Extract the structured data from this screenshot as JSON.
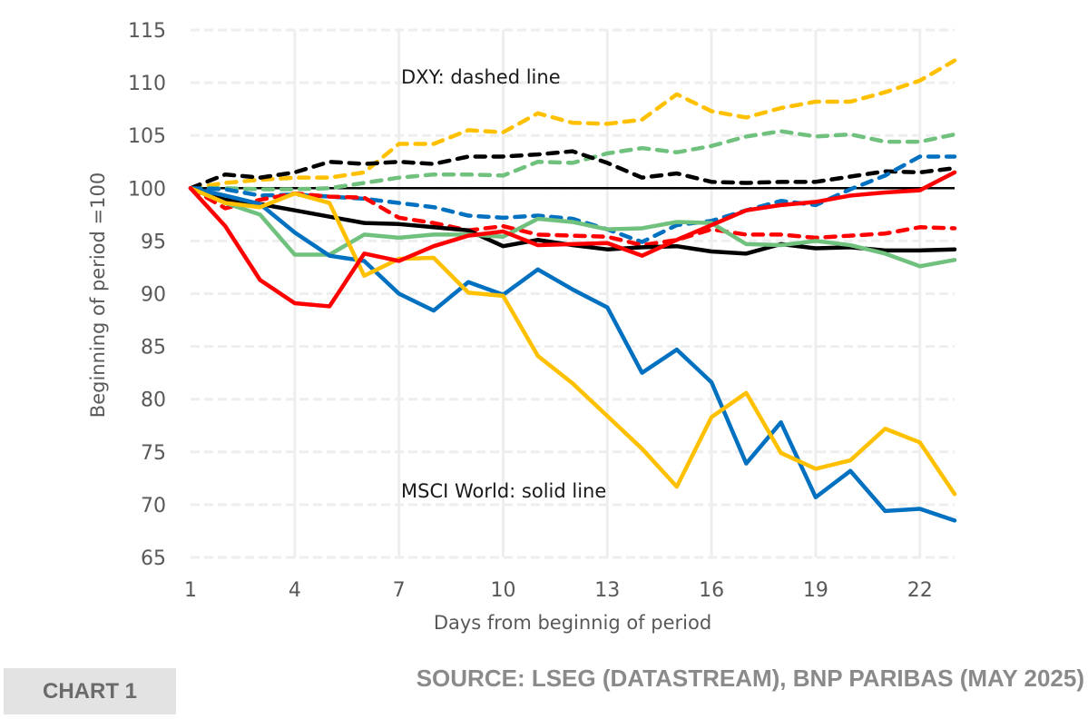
{
  "chart_data": {
    "type": "line",
    "title": "",
    "xlabel": "Days from beginnig of period",
    "ylabel": "Beginning of  period =100",
    "xlim": [
      1,
      23
    ],
    "ylim": [
      65,
      115
    ],
    "x_ticks": [
      1,
      4,
      7,
      10,
      13,
      16,
      19,
      22
    ],
    "y_ticks": [
      65,
      70,
      75,
      80,
      85,
      90,
      95,
      100,
      105,
      110,
      115
    ],
    "grid": {
      "horizontal": "dashed",
      "vertical": "solid"
    },
    "reference_line": 100,
    "annotations": [
      "DXY: dashed line",
      "MSCI World: solid line"
    ],
    "x": [
      1,
      2,
      3,
      4,
      5,
      6,
      7,
      8,
      9,
      10,
      11,
      12,
      13,
      14,
      15,
      16,
      17,
      18,
      19,
      20,
      21,
      22,
      23
    ],
    "series": [
      {
        "name": "yellow-dxy",
        "color": "#FFC000",
        "style": "dashed",
        "values": [
          100,
          100.5,
          100.8,
          101.0,
          101.0,
          101.5,
          104.2,
          104.2,
          105.5,
          105.3,
          107.1,
          106.2,
          106.1,
          106.5,
          108.9,
          107.3,
          106.7,
          107.6,
          108.2,
          108.2,
          109.1,
          110.2,
          112.1
        ]
      },
      {
        "name": "green-dxy",
        "color": "#70C17D",
        "style": "dashed",
        "values": [
          100,
          100.0,
          99.9,
          99.9,
          100.0,
          100.5,
          101.0,
          101.3,
          101.3,
          101.2,
          102.5,
          102.4,
          103.3,
          103.8,
          103.4,
          104.0,
          104.9,
          105.4,
          104.9,
          105.1,
          104.4,
          104.4,
          105.1
        ]
      },
      {
        "name": "black-dxy",
        "color": "#000000",
        "style": "dashed",
        "values": [
          100,
          101.3,
          101.0,
          101.5,
          102.5,
          102.3,
          102.5,
          102.3,
          103.0,
          103.0,
          103.2,
          103.5,
          102.4,
          101.0,
          101.4,
          100.6,
          100.5,
          100.6,
          100.6,
          101.1,
          101.6,
          101.5,
          101.9
        ]
      },
      {
        "name": "blue-dxy",
        "color": "#0070C0",
        "style": "dashed",
        "values": [
          100,
          99.9,
          99.3,
          99.4,
          99.2,
          99.0,
          98.6,
          98.2,
          97.4,
          97.2,
          97.4,
          97.1,
          96.1,
          94.9,
          96.5,
          96.9,
          97.9,
          98.8,
          98.4,
          99.9,
          101.2,
          103.0,
          103.0
        ]
      },
      {
        "name": "red-dxy",
        "color": "#FF0000",
        "style": "dashed",
        "values": [
          100,
          98.1,
          98.9,
          99.5,
          99.2,
          99.1,
          97.2,
          96.7,
          96.0,
          96.4,
          95.6,
          95.5,
          95.4,
          94.6,
          95.1,
          96.1,
          95.6,
          95.6,
          95.3,
          95.5,
          95.7,
          96.3,
          96.2
        ]
      },
      {
        "name": "black-msci",
        "color": "#000000",
        "style": "solid",
        "values": [
          100,
          98.9,
          98.5,
          97.9,
          97.3,
          96.7,
          96.6,
          96.3,
          96.0,
          94.5,
          95.1,
          94.6,
          94.2,
          94.4,
          94.5,
          94.0,
          93.8,
          94.7,
          94.3,
          94.4,
          94.1,
          94.1,
          94.2
        ]
      },
      {
        "name": "green-msci",
        "color": "#70C17D",
        "style": "solid",
        "values": [
          100,
          98.6,
          97.5,
          93.7,
          93.7,
          95.6,
          95.3,
          95.6,
          95.6,
          95.4,
          97.1,
          96.8,
          96.1,
          96.2,
          96.8,
          96.7,
          94.7,
          94.6,
          95.0,
          94.6,
          93.8,
          92.6,
          93.2
        ]
      },
      {
        "name": "blue-msci",
        "color": "#0070C0",
        "style": "solid",
        "values": [
          100,
          99.3,
          98.5,
          95.8,
          93.6,
          93.1,
          90.0,
          88.4,
          91.1,
          89.9,
          92.3,
          90.4,
          88.7,
          82.5,
          84.7,
          81.6,
          73.9,
          77.8,
          70.7,
          73.2,
          69.4,
          69.6,
          68.5
        ]
      },
      {
        "name": "yellow-msci",
        "color": "#FFC000",
        "style": "solid",
        "values": [
          100,
          98.6,
          98.2,
          99.5,
          98.6,
          91.7,
          93.3,
          93.4,
          90.1,
          89.8,
          84.1,
          81.5,
          78.4,
          75.3,
          71.7,
          78.3,
          80.6,
          74.9,
          73.4,
          74.2,
          77.2,
          75.9,
          71.0
        ]
      },
      {
        "name": "red-msci",
        "color": "#FF0000",
        "style": "solid",
        "values": [
          100,
          96.4,
          91.3,
          89.1,
          88.8,
          93.8,
          93.1,
          94.5,
          95.5,
          95.9,
          94.6,
          94.7,
          94.8,
          93.6,
          95.1,
          96.5,
          97.9,
          98.4,
          98.7,
          99.3,
          99.6,
          99.8,
          101.5
        ]
      }
    ]
  },
  "footer": {
    "chart_label": "CHART 1",
    "source": "SOURCE: LSEG (DATASTREAM), BNP PARIBAS (MAY 2025)"
  }
}
